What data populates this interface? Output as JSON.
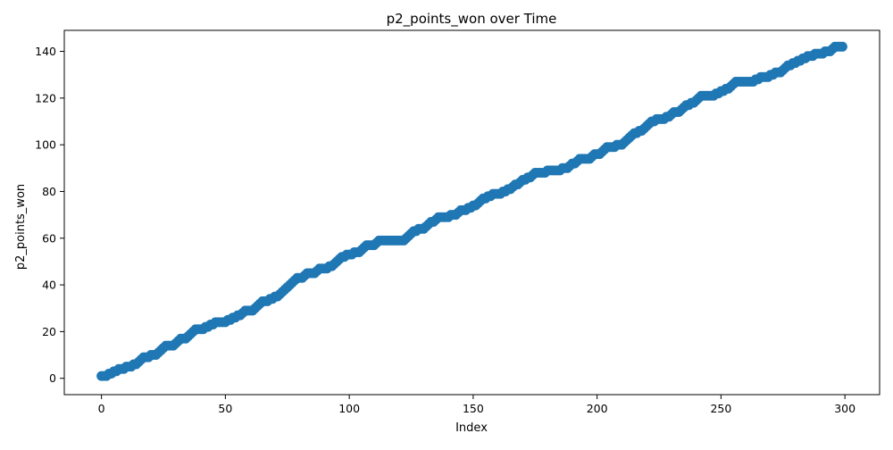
{
  "chart_data": {
    "type": "scatter",
    "title": "p2_points_won over Time",
    "xlabel": "Index",
    "ylabel": "p2_points_won",
    "xlim": [
      -15,
      314
    ],
    "ylim": [
      -7,
      149
    ],
    "xticks": [
      0,
      50,
      100,
      150,
      200,
      250,
      300
    ],
    "yticks": [
      0,
      20,
      40,
      60,
      80,
      100,
      120,
      140
    ],
    "xtick_labels": [
      "0",
      "50",
      "100",
      "150",
      "200",
      "250",
      "300"
    ],
    "ytick_labels": [
      "0",
      "20",
      "40",
      "60",
      "80",
      "100",
      "120",
      "140"
    ],
    "grid": false,
    "series": [
      {
        "color": "#1f77b4",
        "x_start": 0,
        "x_step": 1,
        "values": [
          1,
          1,
          1,
          2,
          2,
          3,
          3,
          4,
          4,
          4,
          5,
          5,
          5,
          6,
          6,
          7,
          8,
          9,
          9,
          9,
          10,
          10,
          10,
          11,
          12,
          13,
          14,
          14,
          14,
          14,
          15,
          16,
          17,
          17,
          17,
          18,
          19,
          20,
          21,
          21,
          21,
          21,
          22,
          22,
          23,
          23,
          24,
          24,
          24,
          24,
          24,
          25,
          25,
          26,
          26,
          27,
          27,
          28,
          29,
          29,
          29,
          29,
          30,
          31,
          32,
          33,
          33,
          33,
          34,
          34,
          35,
          35,
          36,
          37,
          38,
          39,
          40,
          41,
          42,
          43,
          43,
          43,
          44,
          45,
          45,
          45,
          45,
          46,
          47,
          47,
          47,
          47,
          48,
          48,
          49,
          50,
          51,
          52,
          52,
          53,
          53,
          53,
          54,
          54,
          54,
          55,
          56,
          57,
          57,
          57,
          57,
          58,
          59,
          59,
          59,
          59,
          59,
          59,
          59,
          59,
          59,
          59,
          59,
          60,
          61,
          62,
          63,
          63,
          64,
          64,
          64,
          65,
          66,
          67,
          67,
          68,
          69,
          69,
          69,
          69,
          69,
          70,
          70,
          70,
          71,
          72,
          72,
          72,
          73,
          73,
          74,
          74,
          75,
          76,
          77,
          77,
          78,
          78,
          79,
          79,
          79,
          79,
          80,
          80,
          81,
          81,
          82,
          83,
          83,
          84,
          85,
          85,
          86,
          86,
          87,
          88,
          88,
          88,
          88,
          88,
          89,
          89,
          89,
          89,
          89,
          89,
          90,
          90,
          90,
          91,
          92,
          92,
          93,
          94,
          94,
          94,
          94,
          94,
          95,
          96,
          96,
          96,
          97,
          98,
          99,
          99,
          99,
          99,
          100,
          100,
          100,
          101,
          102,
          103,
          104,
          105,
          105,
          106,
          106,
          107,
          108,
          109,
          110,
          110,
          111,
          111,
          111,
          111,
          112,
          112,
          113,
          114,
          114,
          114,
          115,
          116,
          117,
          117,
          118,
          118,
          119,
          120,
          121,
          121,
          121,
          121,
          121,
          121,
          122,
          122,
          123,
          123,
          124,
          124,
          125,
          126,
          127,
          127,
          127,
          127,
          127,
          127,
          127,
          127,
          128,
          128,
          129,
          129,
          129,
          129,
          130,
          130,
          131,
          131,
          131,
          132,
          133,
          134,
          134,
          135,
          135,
          136,
          136,
          137,
          137,
          138,
          138,
          138,
          139,
          139,
          139,
          139,
          140,
          140,
          140,
          141,
          142,
          142,
          142,
          142
        ]
      }
    ]
  }
}
